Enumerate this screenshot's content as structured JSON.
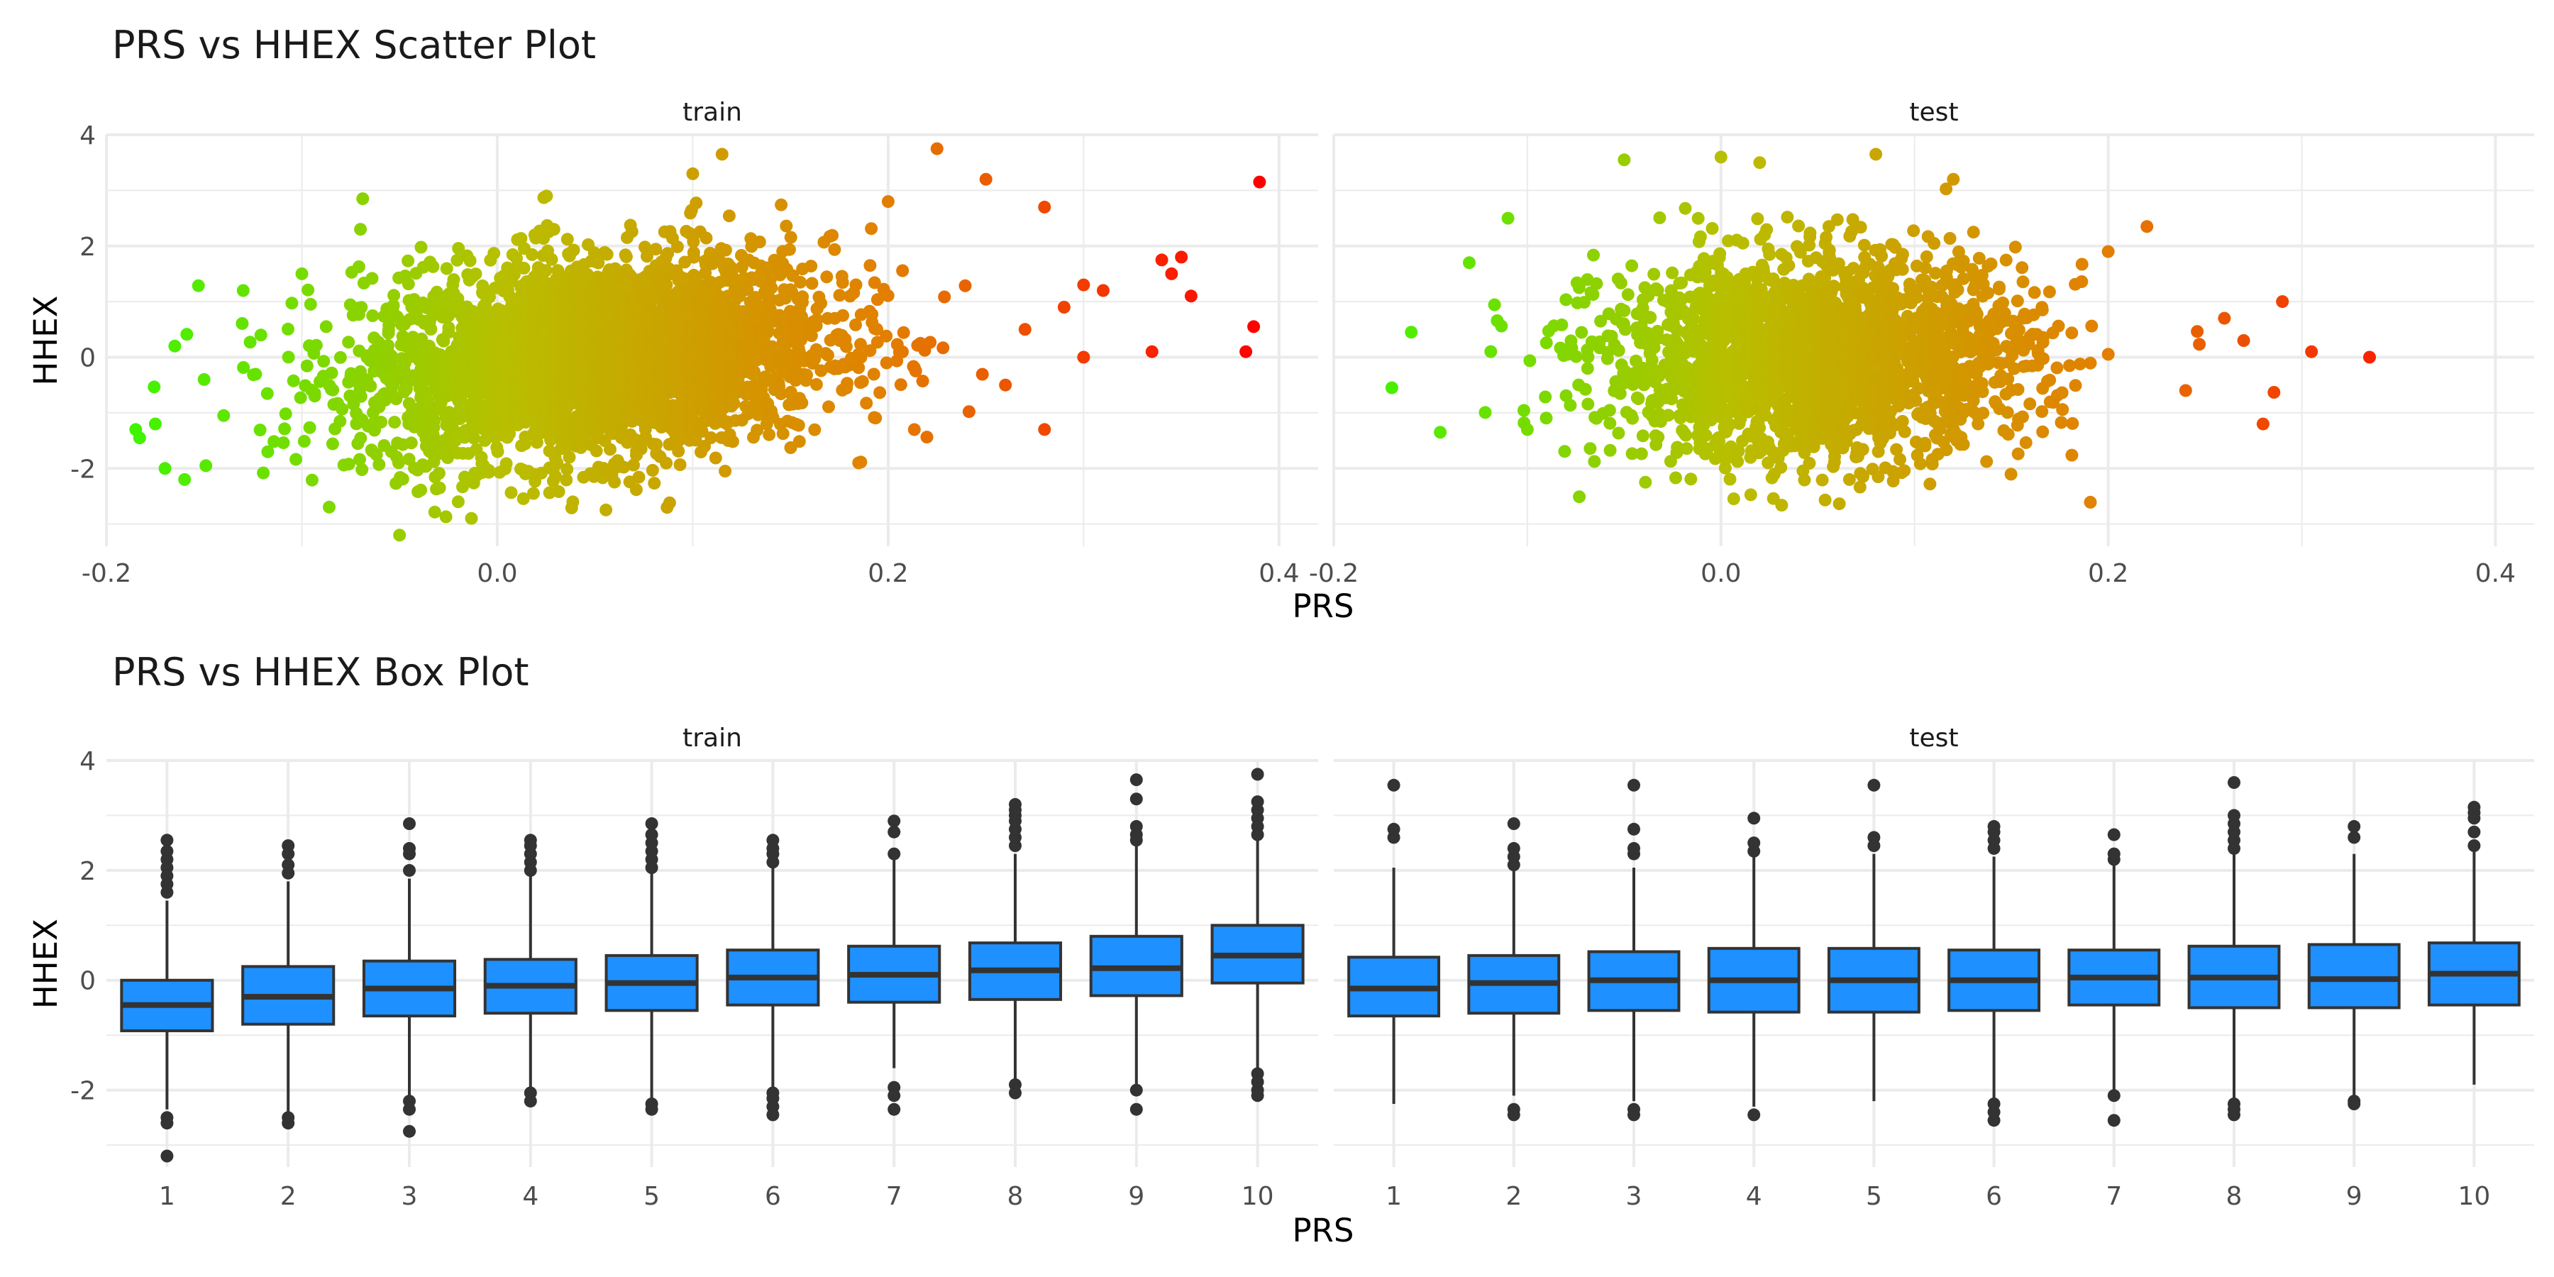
{
  "chart_data": [
    {
      "type": "scatter",
      "title": "PRS vs HHEX Scatter Plot",
      "xlabel": "PRS",
      "ylabel": "HHEX",
      "facets": [
        "train",
        "test"
      ],
      "xlim": [
        -0.2,
        0.42
      ],
      "ylim": [
        -3.4,
        4.0
      ],
      "xticks": [
        -0.2,
        0.0,
        0.2,
        0.4
      ],
      "xtick_labels": [
        "-0.2",
        "0.0",
        "0.2",
        "0.4"
      ],
      "yticks": [
        -2,
        0,
        2,
        4
      ],
      "ytick_labels": [
        "-2",
        "0",
        "2",
        "4"
      ],
      "grid": true,
      "color_scale": [
        "#3df500",
        "#b8bf00",
        "#e28000",
        "#ff0000"
      ],
      "series": [
        {
          "facet": "train",
          "bulk": {
            "x_mean": 0.05,
            "x_sd": 0.06,
            "y_mean": 0.0,
            "y_sd": 0.9
          },
          "points": [
            [
              -0.185,
              -1.3
            ],
            [
              -0.183,
              -1.45
            ],
            [
              -0.175,
              -1.2
            ],
            [
              -0.17,
              -2.0
            ],
            [
              -0.165,
              0.2
            ],
            [
              -0.16,
              -2.2
            ],
            [
              -0.15,
              -0.4
            ],
            [
              -0.14,
              -1.05
            ],
            [
              -0.13,
              1.2
            ],
            [
              -0.1,
              1.5
            ],
            [
              -0.07,
              2.3
            ],
            [
              -0.05,
              -3.2
            ],
            [
              -0.02,
              -2.6
            ],
            [
              0.1,
              3.3
            ],
            [
              0.115,
              3.65
            ],
            [
              0.2,
              2.8
            ],
            [
              0.225,
              3.75
            ],
            [
              0.25,
              3.2
            ],
            [
              0.28,
              2.7
            ],
            [
              0.28,
              -1.3
            ],
            [
              0.29,
              0.9
            ],
            [
              0.3,
              1.3
            ],
            [
              0.31,
              1.2
            ],
            [
              0.335,
              0.1
            ],
            [
              0.34,
              1.75
            ],
            [
              0.345,
              1.5
            ],
            [
              0.35,
              1.8
            ],
            [
              0.355,
              1.1
            ],
            [
              0.383,
              0.1
            ],
            [
              0.387,
              0.55
            ],
            [
              0.39,
              3.15
            ],
            [
              0.26,
              -0.5
            ],
            [
              0.27,
              0.5
            ],
            [
              0.3,
              0.0
            ]
          ]
        },
        {
          "facet": "test",
          "bulk": {
            "x_mean": 0.05,
            "x_sd": 0.055,
            "y_mean": 0.0,
            "y_sd": 0.9
          },
          "points": [
            [
              -0.17,
              -0.55
            ],
            [
              -0.16,
              0.45
            ],
            [
              -0.145,
              -1.35
            ],
            [
              -0.13,
              1.7
            ],
            [
              -0.11,
              2.5
            ],
            [
              -0.1,
              -1.3
            ],
            [
              -0.05,
              3.55
            ],
            [
              0.0,
              3.6
            ],
            [
              0.02,
              3.5
            ],
            [
              0.08,
              3.65
            ],
            [
              0.12,
              3.2
            ],
            [
              0.2,
              1.9
            ],
            [
              0.22,
              2.35
            ],
            [
              0.24,
              -0.6
            ],
            [
              0.26,
              0.7
            ],
            [
              0.27,
              0.3
            ],
            [
              0.28,
              -1.2
            ],
            [
              0.29,
              1.0
            ],
            [
              0.305,
              0.1
            ],
            [
              0.335,
              0.0
            ]
          ]
        }
      ]
    },
    {
      "type": "box",
      "title": "PRS vs HHEX Box Plot",
      "xlabel": "PRS",
      "ylabel": "HHEX",
      "facets": [
        "train",
        "test"
      ],
      "categories": [
        "1",
        "2",
        "3",
        "4",
        "5",
        "6",
        "7",
        "8",
        "9",
        "10"
      ],
      "ylim": [
        -3.4,
        4.0
      ],
      "yticks": [
        -2,
        0,
        2,
        4
      ],
      "ytick_labels": [
        "-2",
        "0",
        "2",
        "4"
      ],
      "grid": true,
      "box_color": "#1e90ff",
      "series": [
        {
          "facet": "train",
          "boxes": [
            {
              "q1": -0.92,
              "median": -0.45,
              "q3": 0.0,
              "lo": -2.35,
              "hi": 1.45,
              "outliers": [
                1.6,
                1.75,
                1.9,
                2.05,
                2.2,
                2.35,
                2.55,
                -2.5,
                -2.6,
                -3.2
              ]
            },
            {
              "q1": -0.8,
              "median": -0.3,
              "q3": 0.25,
              "lo": -2.4,
              "hi": 1.8,
              "outliers": [
                1.95,
                2.1,
                2.3,
                2.45,
                -2.5,
                -2.6
              ]
            },
            {
              "q1": -0.65,
              "median": -0.15,
              "q3": 0.35,
              "lo": -2.1,
              "hi": 1.85,
              "outliers": [
                2.0,
                2.3,
                2.4,
                2.85,
                -2.2,
                -2.35,
                -2.75
              ]
            },
            {
              "q1": -0.6,
              "median": -0.1,
              "q3": 0.38,
              "lo": -2.0,
              "hi": 1.9,
              "outliers": [
                2.0,
                2.15,
                2.3,
                2.45,
                2.55,
                -2.05,
                -2.2
              ]
            },
            {
              "q1": -0.55,
              "median": -0.05,
              "q3": 0.45,
              "lo": -2.15,
              "hi": 1.95,
              "outliers": [
                2.05,
                2.2,
                2.35,
                2.5,
                2.65,
                2.85,
                -2.25,
                -2.35
              ]
            },
            {
              "q1": -0.45,
              "median": 0.05,
              "q3": 0.55,
              "lo": -2.0,
              "hi": 2.05,
              "outliers": [
                2.15,
                2.3,
                2.4,
                2.55,
                -2.05,
                -2.15,
                -2.3,
                -2.45
              ]
            },
            {
              "q1": -0.4,
              "median": 0.1,
              "q3": 0.62,
              "lo": -1.6,
              "hi": 2.2,
              "outliers": [
                2.3,
                2.7,
                2.9,
                -1.95,
                -2.1,
                -2.35
              ]
            },
            {
              "q1": -0.35,
              "median": 0.18,
              "q3": 0.68,
              "lo": -1.85,
              "hi": 2.3,
              "outliers": [
                2.45,
                2.6,
                2.75,
                2.9,
                3.0,
                3.1,
                3.2,
                -1.9,
                -2.05
              ]
            },
            {
              "q1": -0.28,
              "median": 0.22,
              "q3": 0.8,
              "lo": -1.95,
              "hi": 2.45,
              "outliers": [
                2.55,
                2.65,
                2.8,
                3.3,
                3.65,
                -2.0,
                -2.35
              ]
            },
            {
              "q1": -0.05,
              "median": 0.45,
              "q3": 1.0,
              "lo": -1.6,
              "hi": 2.55,
              "outliers": [
                2.65,
                2.8,
                2.95,
                3.1,
                3.25,
                3.75,
                -1.7,
                -1.85,
                -2.0,
                -2.1
              ]
            }
          ]
        },
        {
          "facet": "test",
          "boxes": [
            {
              "q1": -0.65,
              "median": -0.15,
              "q3": 0.42,
              "lo": -2.25,
              "hi": 2.05,
              "outliers": [
                2.6,
                2.75,
                3.55
              ]
            },
            {
              "q1": -0.6,
              "median": -0.05,
              "q3": 0.45,
              "lo": -2.1,
              "hi": 2.0,
              "outliers": [
                2.1,
                2.25,
                2.4,
                2.85,
                -2.35,
                -2.45
              ]
            },
            {
              "q1": -0.55,
              "median": 0.0,
              "q3": 0.52,
              "lo": -2.2,
              "hi": 2.05,
              "outliers": [
                2.3,
                2.4,
                2.75,
                3.55,
                -2.35,
                -2.45
              ]
            },
            {
              "q1": -0.58,
              "median": 0.0,
              "q3": 0.58,
              "lo": -2.3,
              "hi": 2.25,
              "outliers": [
                2.35,
                2.5,
                2.95,
                -2.45
              ]
            },
            {
              "q1": -0.58,
              "median": 0.0,
              "q3": 0.58,
              "lo": -2.2,
              "hi": 2.3,
              "outliers": [
                2.45,
                2.6,
                3.55
              ]
            },
            {
              "q1": -0.55,
              "median": 0.0,
              "q3": 0.55,
              "lo": -2.15,
              "hi": 2.25,
              "outliers": [
                2.4,
                2.55,
                2.7,
                2.8,
                -2.25,
                -2.4,
                -2.55
              ]
            },
            {
              "q1": -0.45,
              "median": 0.05,
              "q3": 0.55,
              "lo": -2.05,
              "hi": 2.1,
              "outliers": [
                2.2,
                2.3,
                2.65,
                -2.1,
                -2.55
              ]
            },
            {
              "q1": -0.5,
              "median": 0.05,
              "q3": 0.62,
              "lo": -2.15,
              "hi": 2.3,
              "outliers": [
                2.4,
                2.55,
                2.7,
                2.85,
                3.0,
                3.6,
                -2.25,
                -2.35,
                -2.45
              ]
            },
            {
              "q1": -0.5,
              "median": 0.02,
              "q3": 0.65,
              "lo": -2.2,
              "hi": 2.3,
              "outliers": [
                2.6,
                2.8,
                -2.2,
                -2.25
              ]
            },
            {
              "q1": -0.45,
              "median": 0.12,
              "q3": 0.68,
              "lo": -1.9,
              "hi": 2.35,
              "outliers": [
                2.45,
                2.7,
                2.95,
                3.05,
                3.15
              ]
            }
          ]
        }
      ]
    }
  ]
}
